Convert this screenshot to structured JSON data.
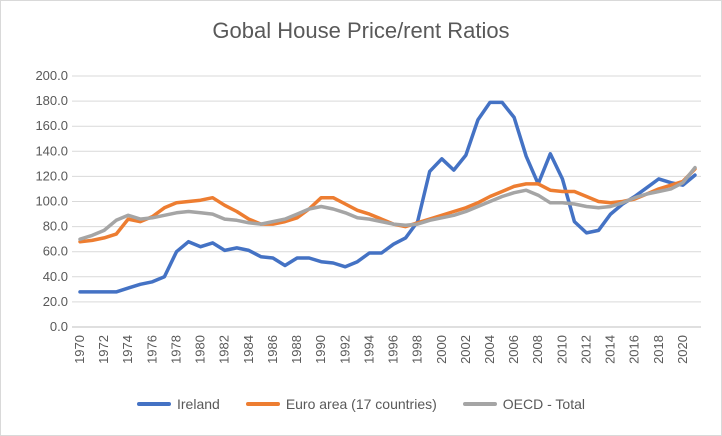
{
  "chart_data": {
    "type": "line",
    "title": "Gobal House Price/rent Ratios",
    "xlabel": "",
    "ylabel": "",
    "ylim": [
      0,
      200
    ],
    "yticks": [
      "0.0",
      "20.0",
      "40.0",
      "60.0",
      "80.0",
      "100.0",
      "120.0",
      "140.0",
      "160.0",
      "180.0",
      "200.0"
    ],
    "x": [
      1970,
      1971,
      1972,
      1973,
      1974,
      1975,
      1976,
      1977,
      1978,
      1979,
      1980,
      1981,
      1982,
      1983,
      1984,
      1985,
      1986,
      1987,
      1988,
      1989,
      1990,
      1991,
      1992,
      1993,
      1994,
      1995,
      1996,
      1997,
      1998,
      1999,
      2000,
      2001,
      2002,
      2003,
      2004,
      2005,
      2006,
      2007,
      2008,
      2009,
      2010,
      2011,
      2012,
      2013,
      2014,
      2015,
      2016,
      2017,
      2018,
      2019,
      2020,
      2021
    ],
    "xticks": [
      "1970",
      "1972",
      "1974",
      "1976",
      "1978",
      "1980",
      "1982",
      "1984",
      "1986",
      "1988",
      "1990",
      "1992",
      "1994",
      "1996",
      "1998",
      "2000",
      "2002",
      "2004",
      "2006",
      "2008",
      "2010",
      "2012",
      "2014",
      "2016",
      "2018",
      "2020"
    ],
    "grid": true,
    "legend_position": "bottom",
    "series": [
      {
        "name": "Ireland",
        "color": "#4472c4",
        "values": [
          28,
          28,
          28,
          28,
          31,
          34,
          36,
          40,
          60,
          68,
          64,
          67,
          61,
          63,
          61,
          56,
          55,
          49,
          55,
          55,
          52,
          51,
          48,
          52,
          59,
          59,
          66,
          71,
          84,
          124,
          134,
          125,
          137,
          165,
          179,
          179,
          167,
          136,
          114,
          138,
          118,
          84,
          75,
          77,
          90,
          98,
          104,
          111,
          118,
          115,
          113,
          121
        ]
      },
      {
        "name": "Euro area (17 countries)",
        "color": "#ed7d31",
        "values": [
          68,
          69,
          71,
          74,
          86,
          84,
          88,
          95,
          99,
          100,
          101,
          103,
          97,
          92,
          86,
          82,
          82,
          84,
          87,
          94,
          103,
          103,
          98,
          93,
          90,
          86,
          82,
          80,
          83,
          86,
          89,
          92,
          95,
          99,
          104,
          108,
          112,
          114,
          114,
          109,
          108,
          108,
          104,
          100,
          99,
          100,
          102,
          106,
          110,
          113,
          116,
          126
        ]
      },
      {
        "name": "OECD - Total",
        "color": "#a5a5a5",
        "values": [
          70,
          73,
          77,
          85,
          89,
          86,
          87,
          89,
          91,
          92,
          91,
          90,
          86,
          85,
          83,
          82,
          84,
          86,
          90,
          94,
          96,
          94,
          91,
          87,
          86,
          84,
          82,
          81,
          82,
          85,
          87,
          89,
          92,
          96,
          100,
          104,
          107,
          109,
          105,
          99,
          99,
          98,
          96,
          95,
          96,
          99,
          103,
          106,
          108,
          110,
          115,
          127
        ]
      }
    ]
  }
}
